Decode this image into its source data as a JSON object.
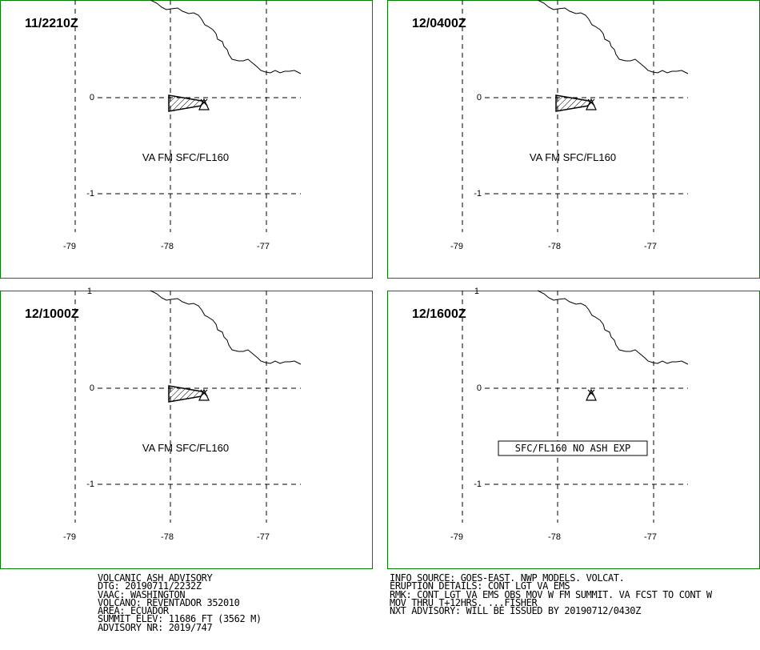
{
  "panels": [
    {
      "time": "11/2210Z",
      "label": "VA FM SFC/FL160",
      "boxed": false,
      "ash": true,
      "show_top_one": false
    },
    {
      "time": "12/0400Z",
      "label": "VA FM SFC/FL160",
      "boxed": false,
      "ash": true,
      "show_top_one": false
    },
    {
      "time": "12/1000Z",
      "label": "VA FM SFC/FL160",
      "boxed": false,
      "ash": true,
      "show_top_one": true
    },
    {
      "time": "12/1600Z",
      "label": "SFC/FL160 NO ASH EXP",
      "boxed": true,
      "ash": false,
      "show_top_one": true
    }
  ],
  "axes": {
    "lon_labels": [
      "-79",
      "-78",
      "-77"
    ],
    "lat_labels": [
      "1",
      "0",
      "-1"
    ]
  },
  "colors": {
    "panel_border": "#008000",
    "lines": "#000000"
  },
  "advisory_left": [
    "VOLCANIC ASH ADVISORY",
    "DTG: 20190711/2232Z",
    "VAAC: WASHINGTON",
    "VOLCANO: REVENTADOR 352010",
    "AREA: ECUADOR",
    "SUMMIT ELEV: 11686 FT (3562 M)",
    "ADVISORY NR: 2019/747"
  ],
  "advisory_right": [
    "INFO SOURCE: GOES-EAST. NWP MODELS. VOLCAT.",
    "ERUPTION DETAILS: CONT LGT VA EMS",
    "RMK: CONT LGT VA EMS OBS MOV W FM SUMMIT. VA FCST TO CONT W",
    "MOV THRU T+12HRS. ...FISHER",
    "NXT ADVISORY: WILL BE ISSUED BY 20190712/0430Z"
  ]
}
